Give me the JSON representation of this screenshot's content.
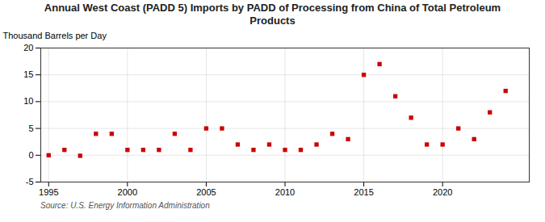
{
  "chart_data": {
    "type": "scatter",
    "title": "Annual West Coast (PADD 5) Imports by PADD of Processing from China of Total Petroleum\nProducts",
    "ylabel": "Thousand Barrels per Day",
    "source": "Source: U.S. Energy Information Administration",
    "x": [
      1995,
      1996,
      1997,
      1998,
      1999,
      2000,
      2001,
      2002,
      2003,
      2004,
      2005,
      2006,
      2007,
      2008,
      2009,
      2010,
      2011,
      2012,
      2013,
      2014,
      2015,
      2016,
      2017,
      2018,
      2019,
      2020,
      2021,
      2022,
      2023,
      2024
    ],
    "values": [
      0,
      1,
      -0.1,
      4,
      4,
      1,
      1,
      1,
      4,
      1,
      5,
      5,
      2,
      1,
      2,
      1,
      1,
      2,
      4,
      3,
      15,
      17,
      11,
      7,
      2,
      2,
      5,
      3,
      8,
      12
    ],
    "color": "#cc0000",
    "marker": "square",
    "xlim": [
      1994.5,
      2025.5
    ],
    "xticks": [
      1995,
      2000,
      2005,
      2010,
      2015,
      2020
    ],
    "ylim": [
      -5,
      20
    ],
    "yticks": [
      -5,
      0,
      5,
      10,
      15,
      20
    ],
    "grid": true
  }
}
